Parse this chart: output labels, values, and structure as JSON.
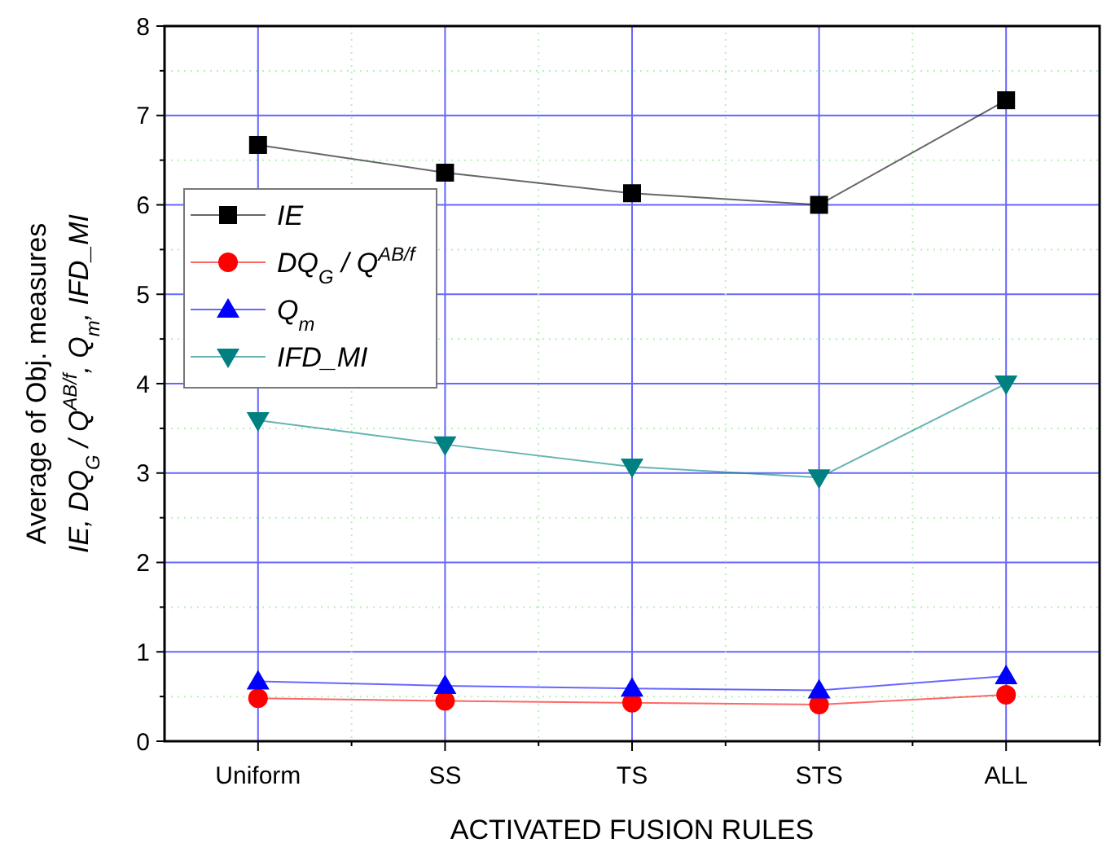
{
  "chart_data": {
    "type": "line",
    "xlabel": "ACTIVATED FUSION RULES",
    "ylabel": "Average of Obj. measures\nIE, DQ$_{G}$ / Q$^{AB/f}$, Q$_{m}$, IFD_MI",
    "categories": [
      "Uniform",
      "SS",
      "TS",
      "STS",
      "ALL"
    ],
    "ylim": [
      0,
      8
    ],
    "yticks": [
      0,
      1,
      2,
      3,
      4,
      5,
      6,
      7,
      8
    ],
    "grid": true,
    "legend": "top left",
    "line_style": "solid",
    "series": [
      {
        "name": "IE",
        "color": "#000000",
        "marker": "square",
        "values": [
          6.67,
          6.36,
          6.13,
          6.0,
          7.17
        ]
      },
      {
        "name": "DQ$_{G}$ / Q$^{AB/f}$",
        "color": "#ff0000",
        "marker": "circle",
        "values": [
          0.48,
          0.45,
          0.43,
          0.41,
          0.52
        ]
      },
      {
        "name": "Q$_{m}$",
        "color": "#0000ff",
        "marker": "triangle",
        "values": [
          0.67,
          0.62,
          0.59,
          0.57,
          0.73
        ]
      },
      {
        "name": "IFD_MI",
        "color": "#008080",
        "marker": "triangle-down",
        "values": [
          3.59,
          3.32,
          3.07,
          2.95,
          4.0
        ]
      }
    ]
  }
}
